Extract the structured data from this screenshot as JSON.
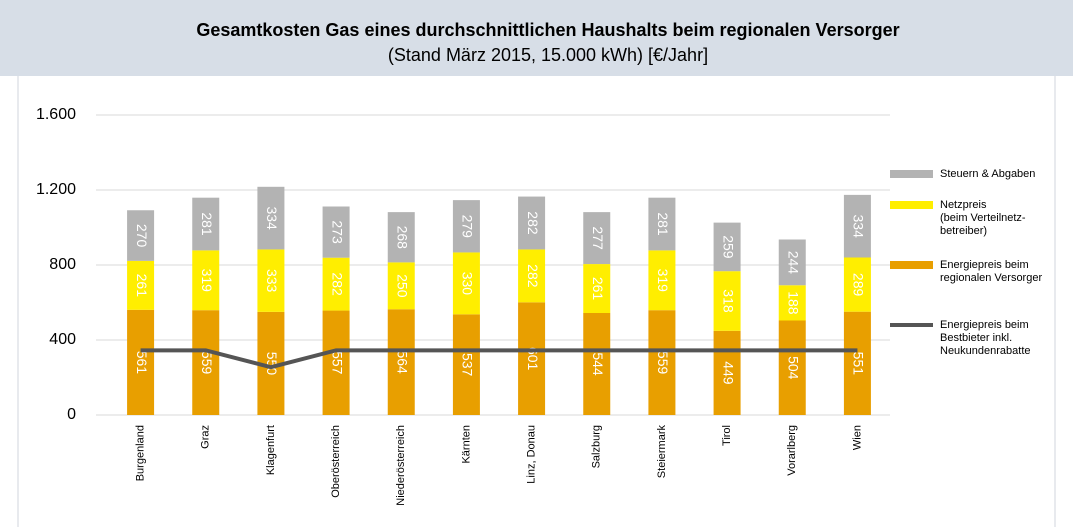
{
  "chart_data": {
    "type": "bar",
    "stacked": true,
    "title": "Gesamtkosten Gas eines durchschnittlichen Haushalts beim regionalen Versorger",
    "subtitle": "(Stand März 2015, 15.000 kWh) [€/Jahr]",
    "categories": [
      "Burgenland",
      "Graz",
      "Klagenfurt",
      "Oberösterreich",
      "Niederösterreich",
      "Kärnten",
      "Linz, Donau",
      "Salzburg",
      "Steiermark",
      "Tirol",
      "Vorarlberg",
      "Wien"
    ],
    "series": [
      {
        "name": "Energiepreis beim\nregionalen Versorger",
        "color": "#e89f00",
        "values": [
          561,
          559,
          550,
          557,
          564,
          537,
          601,
          544,
          559,
          449,
          504,
          551
        ]
      },
      {
        "name": "Netzpreis\n(beim Verteilnetz-\nbetreiber)",
        "color": "#ffee00",
        "values": [
          261,
          319,
          333,
          282,
          250,
          330,
          282,
          261,
          319,
          318,
          188,
          289
        ]
      },
      {
        "name": "Steuern & Abgaben",
        "color": "#b3b3b3",
        "values": [
          270,
          281,
          334,
          273,
          268,
          279,
          282,
          277,
          281,
          259,
          244,
          334
        ]
      },
      {
        "name": "Energiepreis beim\nBestbieter inkl.\nNeukundenrabatte",
        "color": "#555555",
        "type": "line",
        "values": [
          345,
          345,
          255,
          345,
          345,
          345,
          345,
          345,
          345,
          345,
          345,
          345
        ]
      }
    ],
    "ylim": [
      0,
      1600
    ],
    "yticks": [
      0,
      400,
      800,
      {
        "value": 1200,
        "label": "1.200"
      },
      {
        "value": 1600,
        "label": "1.600"
      }
    ],
    "grid": true,
    "legend": "right"
  }
}
